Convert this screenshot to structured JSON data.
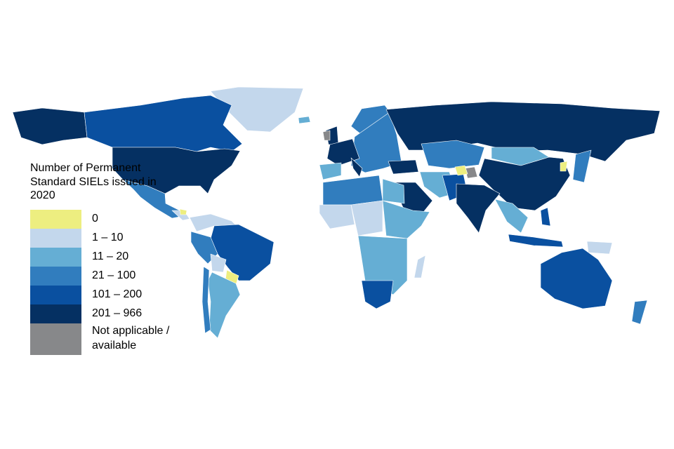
{
  "legend": {
    "title": "Number of Permanent Standard SIELs issued in 2020",
    "classes": [
      {
        "key": "c0",
        "label": "0",
        "color": "#EDEE80"
      },
      {
        "key": "c1",
        "label": "1 – 10",
        "color": "#C3D7EC"
      },
      {
        "key": "c2",
        "label": "11 – 20",
        "color": "#65AED4"
      },
      {
        "key": "c3",
        "label": "21 – 100",
        "color": "#317DBE"
      },
      {
        "key": "c4",
        "label": "101 – 200",
        "color": "#0A50A0"
      },
      {
        "key": "c5",
        "label": "201 – 966",
        "color": "#053062"
      },
      {
        "key": "na",
        "label": "Not applicable / available",
        "color": "#87888A"
      }
    ]
  }
}
